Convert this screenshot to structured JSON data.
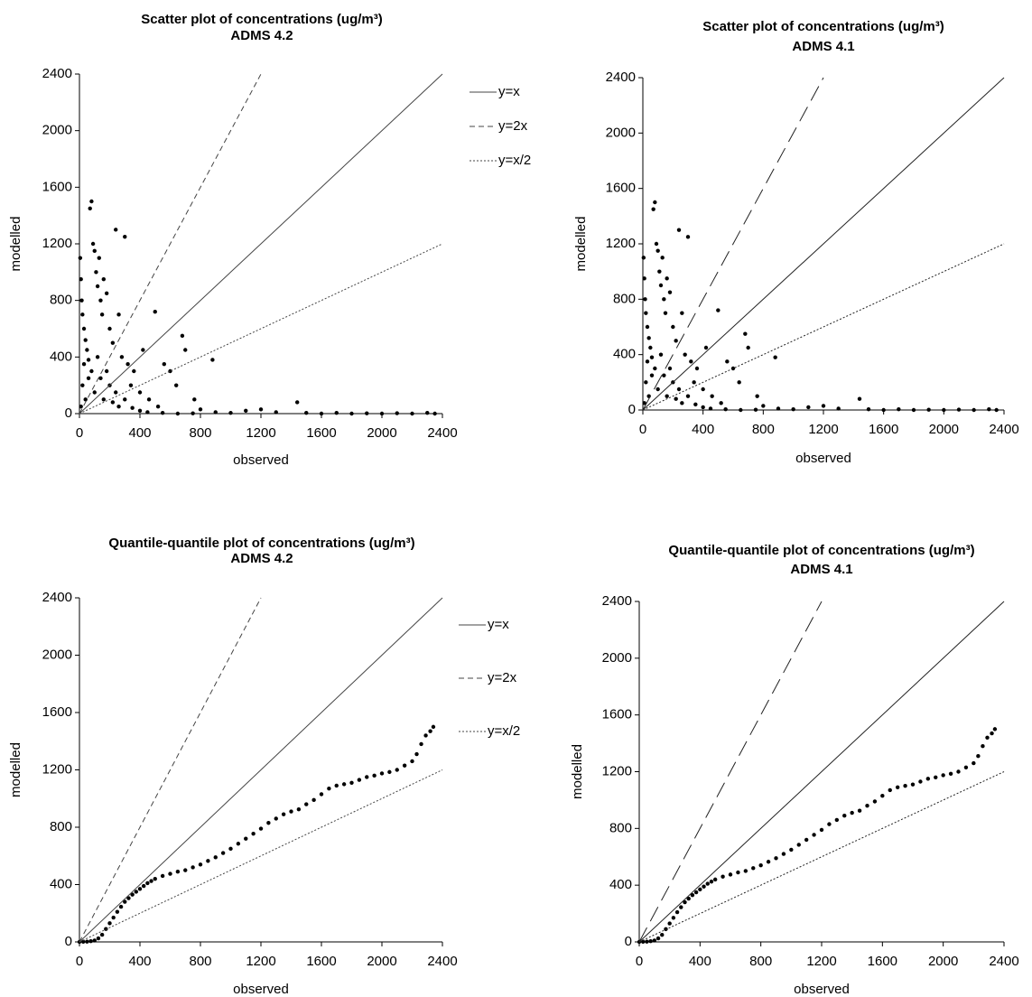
{
  "chart_data": [
    {
      "type": "scatter",
      "title": "Scatter plot of concentrations (ug/m³)",
      "subtitle": "ADMS 4.2",
      "xlabel": "observed",
      "ylabel": "modelled",
      "xlim": [
        0,
        2400
      ],
      "ylim": [
        0,
        2400
      ],
      "xticks": [
        0,
        400,
        800,
        1200,
        1600,
        2000,
        2400
      ],
      "yticks": [
        0,
        400,
        800,
        1200,
        1600,
        2000,
        2400
      ],
      "legend": "right",
      "series": [
        {
          "type": "scatter",
          "color": "#000000",
          "x": [
            5,
            10,
            15,
            20,
            30,
            40,
            50,
            60,
            70,
            80,
            90,
            100,
            110,
            120,
            130,
            140,
            150,
            160,
            180,
            200,
            220,
            240,
            260,
            280,
            300,
            320,
            340,
            360,
            400,
            420,
            460,
            500,
            520,
            560,
            600,
            640,
            680,
            700,
            760,
            800,
            880,
            900,
            1000,
            1100,
            1200,
            1300,
            1440,
            1500,
            1600,
            1700,
            1800,
            1900,
            2000,
            2100,
            2200,
            2300,
            2350,
            10,
            20,
            30,
            40,
            60,
            80,
            100,
            120,
            140,
            160,
            180,
            200,
            220,
            240,
            260,
            300,
            350,
            400,
            450,
            550,
            650,
            750
          ],
          "values": [
            1100,
            950,
            800,
            700,
            600,
            520,
            450,
            380,
            1450,
            1500,
            1200,
            1150,
            1000,
            900,
            1100,
            800,
            700,
            950,
            850,
            600,
            500,
            1300,
            700,
            400,
            1250,
            350,
            200,
            300,
            150,
            450,
            100,
            720,
            50,
            350,
            300,
            200,
            550,
            450,
            100,
            30,
            380,
            10,
            5,
            20,
            30,
            10,
            80,
            5,
            0,
            5,
            0,
            2,
            0,
            3,
            0,
            5,
            0,
            50,
            200,
            350,
            100,
            250,
            300,
            150,
            400,
            250,
            100,
            300,
            200,
            80,
            150,
            50,
            100,
            40,
            20,
            10,
            5,
            0,
            2
          ]
        },
        {
          "type": "line",
          "name": "y=x",
          "color": "#444444",
          "dash": "solid",
          "x": [
            0,
            2400
          ],
          "values": [
            0,
            2400
          ]
        },
        {
          "type": "line",
          "name": "y=2x",
          "color": "#444444",
          "dash": "dashed",
          "x": [
            0,
            1200
          ],
          "values": [
            0,
            2400
          ]
        },
        {
          "type": "line",
          "name": "y=x/2",
          "color": "#444444",
          "dash": "dotted",
          "x": [
            0,
            2400
          ],
          "values": [
            0,
            1200
          ]
        }
      ]
    },
    {
      "type": "scatter",
      "title": "Scatter plot of concentrations (ug/m³)",
      "subtitle": "ADMS 4.1",
      "xlabel": "observed",
      "ylabel": "modelled",
      "xlim": [
        0,
        2400
      ],
      "ylim": [
        0,
        2400
      ],
      "xticks": [
        0,
        400,
        800,
        1200,
        1600,
        2000,
        2400
      ],
      "yticks": [
        0,
        400,
        800,
        1200,
        1600,
        2000,
        2400
      ],
      "series": [
        {
          "type": "scatter",
          "color": "#000000",
          "x": [
            5,
            10,
            15,
            20,
            30,
            40,
            50,
            60,
            70,
            80,
            90,
            100,
            110,
            120,
            130,
            140,
            150,
            160,
            180,
            200,
            220,
            240,
            260,
            280,
            300,
            320,
            340,
            360,
            400,
            420,
            460,
            500,
            520,
            560,
            600,
            640,
            680,
            700,
            760,
            800,
            880,
            900,
            1000,
            1100,
            1200,
            1300,
            1440,
            1500,
            1600,
            1700,
            1800,
            1900,
            2000,
            2100,
            2200,
            2300,
            2350,
            10,
            20,
            30,
            40,
            60,
            80,
            100,
            120,
            140,
            160,
            180,
            200,
            220,
            240,
            260,
            300,
            350,
            400,
            450,
            550,
            650,
            750
          ],
          "values": [
            1100,
            950,
            800,
            700,
            600,
            520,
            450,
            380,
            1450,
            1500,
            1200,
            1150,
            1000,
            900,
            1100,
            800,
            700,
            950,
            850,
            600,
            500,
            1300,
            700,
            400,
            1250,
            350,
            200,
            300,
            150,
            450,
            100,
            720,
            50,
            350,
            300,
            200,
            550,
            450,
            100,
            30,
            380,
            10,
            5,
            20,
            30,
            10,
            80,
            5,
            0,
            5,
            0,
            2,
            0,
            3,
            0,
            5,
            0,
            50,
            200,
            350,
            100,
            250,
            300,
            150,
            400,
            250,
            100,
            300,
            200,
            80,
            150,
            50,
            100,
            40,
            20,
            10,
            5,
            0,
            2
          ]
        },
        {
          "type": "line",
          "color": "#222222",
          "dash": "solid",
          "x": [
            0,
            2400
          ],
          "values": [
            0,
            2400
          ]
        },
        {
          "type": "line",
          "color": "#222222",
          "dash": "longdash",
          "x": [
            0,
            1200
          ],
          "values": [
            0,
            2400
          ]
        },
        {
          "type": "line",
          "color": "#222222",
          "dash": "dotted",
          "x": [
            0,
            2400
          ],
          "values": [
            0,
            1200
          ]
        }
      ]
    },
    {
      "type": "scatter",
      "title": "Quantile-quantile plot of concentrations (ug/m³)",
      "subtitle": "ADMS 4.2",
      "xlabel": "observed",
      "ylabel": "modelled",
      "xlim": [
        0,
        2400
      ],
      "ylim": [
        0,
        2400
      ],
      "xticks": [
        0,
        400,
        800,
        1200,
        1600,
        2000,
        2400
      ],
      "yticks": [
        0,
        400,
        800,
        1200,
        1600,
        2000,
        2400
      ],
      "legend": "right",
      "series": [
        {
          "type": "scatter",
          "color": "#000000",
          "x": [
            0,
            25,
            50,
            75,
            100,
            125,
            150,
            175,
            200,
            225,
            250,
            275,
            300,
            325,
            350,
            375,
            400,
            425,
            450,
            475,
            500,
            550,
            600,
            650,
            700,
            750,
            800,
            850,
            900,
            950,
            1000,
            1050,
            1100,
            1150,
            1200,
            1250,
            1300,
            1350,
            1400,
            1450,
            1500,
            1550,
            1600,
            1650,
            1700,
            1750,
            1800,
            1850,
            1900,
            1950,
            2000,
            2050,
            2100,
            2150,
            2200,
            2230,
            2260,
            2290,
            2320,
            2340
          ],
          "values": [
            0,
            1,
            2,
            5,
            10,
            25,
            50,
            90,
            130,
            170,
            210,
            245,
            280,
            305,
            330,
            350,
            370,
            390,
            410,
            425,
            440,
            460,
            475,
            490,
            500,
            520,
            540,
            565,
            590,
            620,
            650,
            685,
            720,
            755,
            790,
            830,
            860,
            890,
            910,
            925,
            960,
            990,
            1030,
            1070,
            1090,
            1100,
            1110,
            1130,
            1150,
            1160,
            1175,
            1185,
            1200,
            1230,
            1260,
            1310,
            1380,
            1440,
            1470,
            1500
          ]
        },
        {
          "type": "line",
          "name": "y=x",
          "color": "#444444",
          "dash": "solid",
          "x": [
            0,
            2400
          ],
          "values": [
            0,
            2400
          ]
        },
        {
          "type": "line",
          "name": "y=2x",
          "color": "#444444",
          "dash": "dashed",
          "x": [
            0,
            1200
          ],
          "values": [
            0,
            2400
          ]
        },
        {
          "type": "line",
          "name": "y=x/2",
          "color": "#444444",
          "dash": "dotted",
          "x": [
            0,
            2400
          ],
          "values": [
            0,
            1200
          ]
        }
      ]
    },
    {
      "type": "scatter",
      "title": "Quantile-quantile plot of concentrations (ug/m³)",
      "subtitle": "ADMS 4.1",
      "xlabel": "observed",
      "ylabel": "modelled",
      "xlim": [
        0,
        2400
      ],
      "ylim": [
        0,
        2400
      ],
      "xticks": [
        0,
        400,
        800,
        1200,
        1600,
        2000,
        2400
      ],
      "yticks": [
        0,
        400,
        800,
        1200,
        1600,
        2000,
        2400
      ],
      "series": [
        {
          "type": "scatter",
          "color": "#000000",
          "x": [
            0,
            25,
            50,
            75,
            100,
            125,
            150,
            175,
            200,
            225,
            250,
            275,
            300,
            325,
            350,
            375,
            400,
            425,
            450,
            475,
            500,
            550,
            600,
            650,
            700,
            750,
            800,
            850,
            900,
            950,
            1000,
            1050,
            1100,
            1150,
            1200,
            1250,
            1300,
            1350,
            1400,
            1450,
            1500,
            1550,
            1600,
            1650,
            1700,
            1750,
            1800,
            1850,
            1900,
            1950,
            2000,
            2050,
            2100,
            2150,
            2200,
            2230,
            2260,
            2290,
            2320,
            2340
          ],
          "values": [
            0,
            1,
            2,
            5,
            10,
            25,
            50,
            90,
            130,
            170,
            210,
            245,
            280,
            305,
            330,
            350,
            370,
            390,
            410,
            425,
            440,
            460,
            475,
            490,
            500,
            520,
            540,
            565,
            590,
            620,
            650,
            685,
            720,
            755,
            790,
            830,
            860,
            890,
            910,
            925,
            960,
            990,
            1030,
            1070,
            1090,
            1100,
            1110,
            1130,
            1150,
            1160,
            1175,
            1185,
            1200,
            1230,
            1260,
            1310,
            1380,
            1440,
            1470,
            1500
          ]
        },
        {
          "type": "line",
          "color": "#222222",
          "dash": "solid",
          "x": [
            0,
            2400
          ],
          "values": [
            0,
            2400
          ]
        },
        {
          "type": "line",
          "color": "#222222",
          "dash": "longdash",
          "x": [
            0,
            1200
          ],
          "values": [
            0,
            2400
          ]
        },
        {
          "type": "line",
          "color": "#222222",
          "dash": "dotted",
          "x": [
            0,
            2400
          ],
          "values": [
            0,
            1200
          ]
        }
      ]
    }
  ]
}
